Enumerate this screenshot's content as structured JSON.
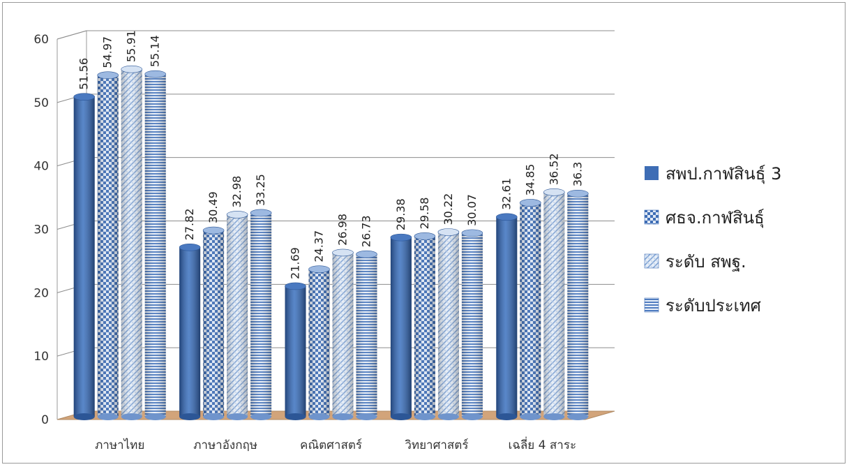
{
  "chart_data": {
    "type": "bar",
    "categories": [
      "ภาษาไทย",
      "ภาษาอังกฤษ",
      "คณิตศาสตร์",
      "วิทยาศาสตร์",
      "เฉลี่ย 4 สาระ"
    ],
    "series": [
      {
        "name": "สพป.กาฬสินธุ์ 3",
        "values": [
          51.56,
          27.82,
          21.69,
          29.38,
          32.61
        ],
        "pattern": "solid",
        "color": "#3e6db5"
      },
      {
        "name": "ศธจ.กาฬสินธุ์",
        "values": [
          54.97,
          30.49,
          24.37,
          29.58,
          34.85
        ],
        "pattern": "checker",
        "color": "#3e6db5"
      },
      {
        "name": "ระดับ สพฐ.",
        "values": [
          55.91,
          32.98,
          26.98,
          30.22,
          36.52
        ],
        "pattern": "weave",
        "color": "#8fb1dc"
      },
      {
        "name": "ระดับประเทศ",
        "values": [
          55.14,
          33.25,
          26.73,
          30.07,
          36.3
        ],
        "pattern": "hlines",
        "color": "#3e6db5"
      }
    ],
    "ylim": [
      0,
      60
    ],
    "yticks": [
      "0",
      "10",
      "20",
      "30",
      "40",
      "50",
      "60"
    ],
    "grid": true,
    "legend": "right",
    "floor_color": "#d2a47a"
  }
}
